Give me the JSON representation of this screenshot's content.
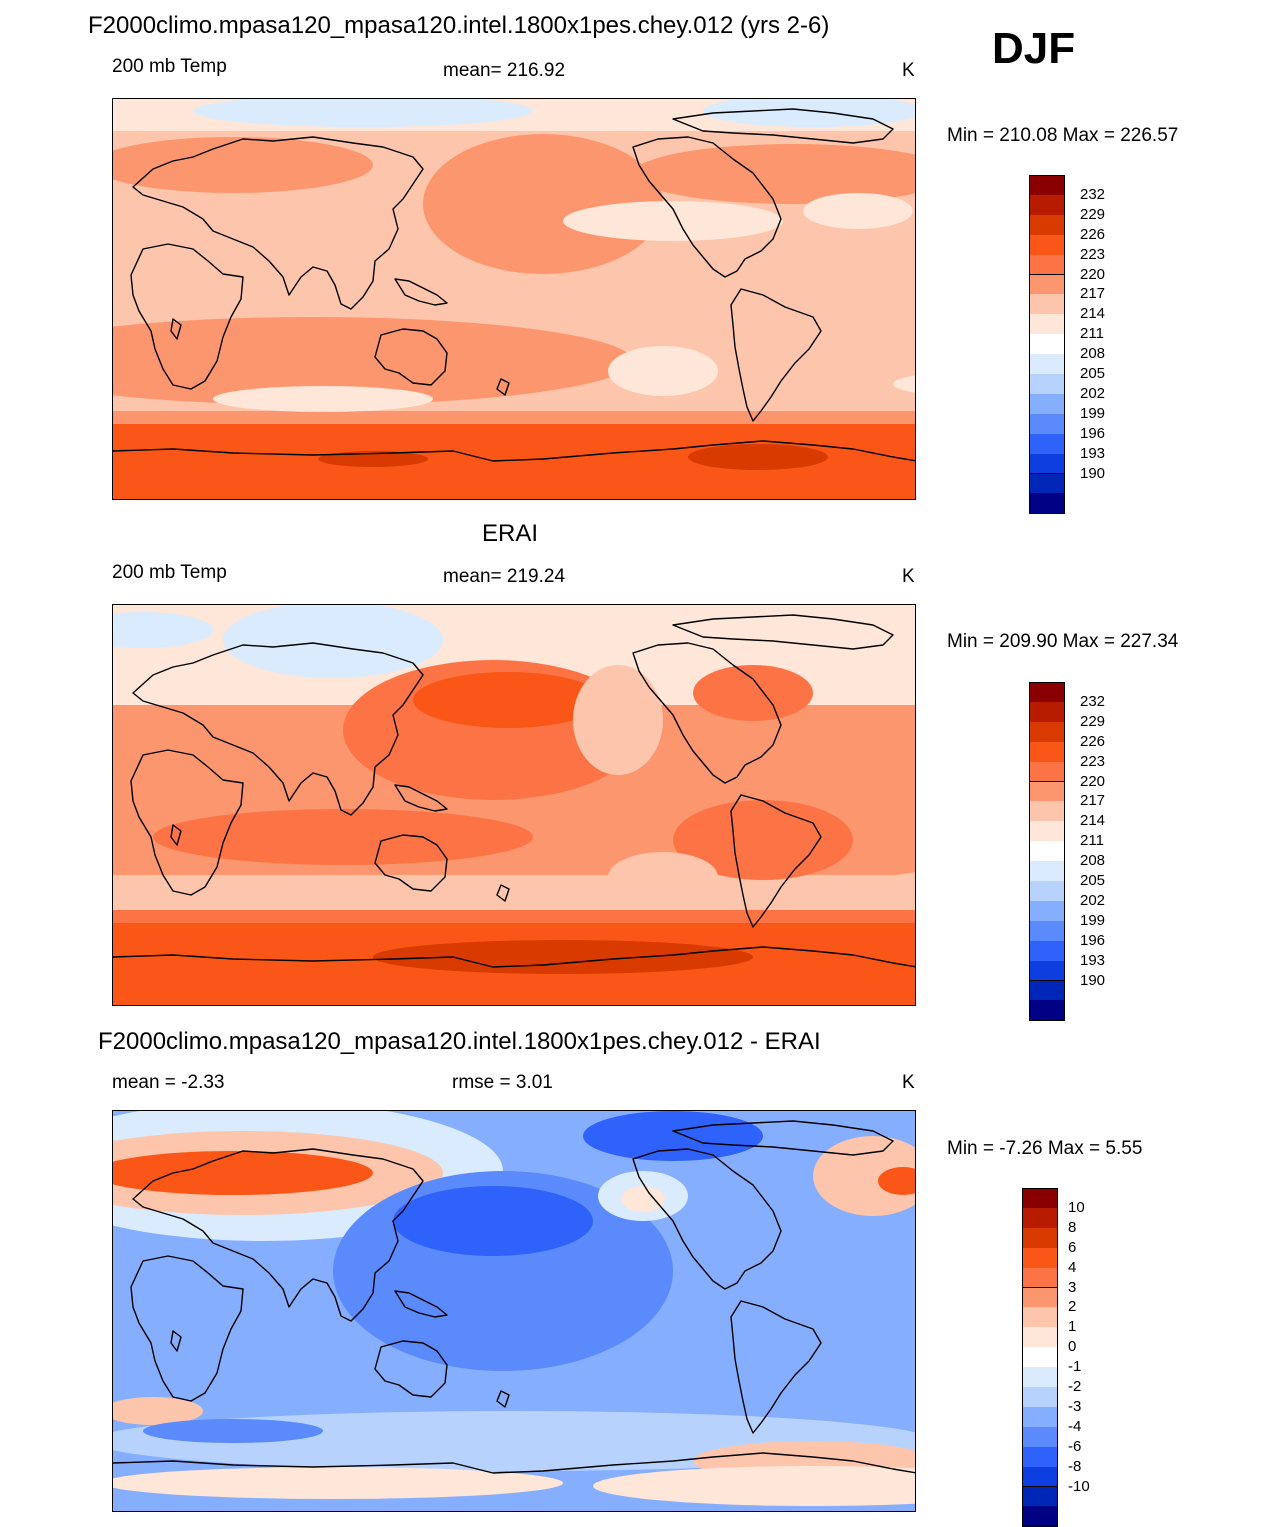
{
  "season": "DJF",
  "panels": [
    {
      "title": "F2000climo.mpasa120_mpasa120.intel.1800x1pes.chey.012 (yrs 2-6)",
      "left": "200 mb Temp",
      "center": "mean= 216.92",
      "units": "K",
      "minmax": "Min = 210.08 Max = 226.57",
      "bg": "#fcc5ac",
      "colorbar": {
        "labels": [
          "232",
          "229",
          "226",
          "223",
          "220",
          "217",
          "214",
          "211",
          "208",
          "205",
          "202",
          "199",
          "196",
          "193",
          "190"
        ],
        "colors": [
          "#8a0000",
          "#b81c00",
          "#d93a00",
          "#fa5617",
          "#fc7446",
          "#fc966e",
          "#fcc5ac",
          "#fee6d8",
          "#ffffff",
          "#d9ebfd",
          "#b7d3fd",
          "#86aefe",
          "#5a8afb",
          "#2f62fb",
          "#0d3ee0",
          "#0026b8",
          "#000085"
        ]
      },
      "regions": [
        {
          "kind": "band",
          "color": "#fee6d8",
          "y1": 0,
          "y2": 32
        },
        {
          "kind": "band",
          "color": "#fc966e",
          "y1": 312,
          "y2": 325
        },
        {
          "kind": "band",
          "color": "#fa5617",
          "y1": 325,
          "y2": 402
        },
        {
          "kind": "blob",
          "color": "#d9ebfd",
          "cx": 250,
          "cy": 12,
          "rx": 170,
          "ry": 16
        },
        {
          "kind": "blob",
          "color": "#d9ebfd",
          "cx": 700,
          "cy": 12,
          "rx": 110,
          "ry": 16
        },
        {
          "kind": "blob",
          "color": "#fc966e",
          "cx": 120,
          "cy": 66,
          "rx": 140,
          "ry": 28
        },
        {
          "kind": "blob",
          "color": "#fc966e",
          "cx": 430,
          "cy": 105,
          "rx": 120,
          "ry": 70
        },
        {
          "kind": "blob",
          "color": "#fc966e",
          "cx": 680,
          "cy": 75,
          "rx": 160,
          "ry": 30
        },
        {
          "kind": "blob",
          "color": "#fee6d8",
          "cx": 560,
          "cy": 122,
          "rx": 110,
          "ry": 20
        },
        {
          "kind": "blob",
          "color": "#fee6d8",
          "cx": 745,
          "cy": 112,
          "rx": 55,
          "ry": 18
        },
        {
          "kind": "blob",
          "color": "#fc966e",
          "cx": 200,
          "cy": 262,
          "rx": 320,
          "ry": 44
        },
        {
          "kind": "blob",
          "color": "#fee6d8",
          "cx": 210,
          "cy": 300,
          "rx": 110,
          "ry": 13
        },
        {
          "kind": "blob",
          "color": "#fee6d8",
          "cx": 550,
          "cy": 272,
          "rx": 55,
          "ry": 25
        },
        {
          "kind": "blob",
          "color": "#fee6d8",
          "cx": 880,
          "cy": 285,
          "rx": 100,
          "ry": 14
        },
        {
          "kind": "blob",
          "color": "#d93a00",
          "cx": 260,
          "cy": 360,
          "rx": 55,
          "ry": 8
        },
        {
          "kind": "blob",
          "color": "#d93a00",
          "cx": 645,
          "cy": 358,
          "rx": 70,
          "ry": 13
        }
      ]
    },
    {
      "title": "ERAI",
      "left": "200 mb Temp",
      "center": "mean= 219.24",
      "units": "K",
      "minmax": "Min = 209.90 Max = 227.34",
      "bg": "#fc966e",
      "colorbar": {
        "labels": [
          "232",
          "229",
          "226",
          "223",
          "220",
          "217",
          "214",
          "211",
          "208",
          "205",
          "202",
          "199",
          "196",
          "193",
          "190"
        ],
        "colors": [
          "#8a0000",
          "#b81c00",
          "#d93a00",
          "#fa5617",
          "#fc7446",
          "#fc966e",
          "#fcc5ac",
          "#fee6d8",
          "#ffffff",
          "#d9ebfd",
          "#b7d3fd",
          "#86aefe",
          "#5a8afb",
          "#2f62fb",
          "#0d3ee0",
          "#0026b8",
          "#000085"
        ]
      },
      "regions": [
        {
          "kind": "band",
          "color": "#fee6d8",
          "y1": 0,
          "y2": 100
        },
        {
          "kind": "band",
          "color": "#fcc5ac",
          "y1": 270,
          "y2": 305
        },
        {
          "kind": "band",
          "color": "#fc7446",
          "y1": 305,
          "y2": 318
        },
        {
          "kind": "band",
          "color": "#fa5617",
          "y1": 318,
          "y2": 402
        },
        {
          "kind": "blob",
          "color": "#d9ebfd",
          "cx": 220,
          "cy": 35,
          "rx": 110,
          "ry": 38
        },
        {
          "kind": "blob",
          "color": "#d9ebfd",
          "cx": 30,
          "cy": 25,
          "rx": 70,
          "ry": 18
        },
        {
          "kind": "blob",
          "color": "#fc7446",
          "cx": 380,
          "cy": 125,
          "rx": 150,
          "ry": 70
        },
        {
          "kind": "blob",
          "color": "#fa5617",
          "cx": 395,
          "cy": 95,
          "rx": 95,
          "ry": 28
        },
        {
          "kind": "blob",
          "color": "#fc7446",
          "cx": 640,
          "cy": 88,
          "rx": 60,
          "ry": 28
        },
        {
          "kind": "blob",
          "color": "#fcc5ac",
          "cx": 505,
          "cy": 115,
          "rx": 45,
          "ry": 55
        },
        {
          "kind": "blob",
          "color": "#fc7446",
          "cx": 230,
          "cy": 232,
          "rx": 190,
          "ry": 28
        },
        {
          "kind": "blob",
          "color": "#fc7446",
          "cx": 650,
          "cy": 235,
          "rx": 90,
          "ry": 40
        },
        {
          "kind": "blob",
          "color": "#fcc5ac",
          "cx": 550,
          "cy": 272,
          "rx": 55,
          "ry": 25
        },
        {
          "kind": "blob",
          "color": "#fcc5ac",
          "cx": 870,
          "cy": 280,
          "rx": 110,
          "ry": 16
        },
        {
          "kind": "blob",
          "color": "#d93a00",
          "cx": 450,
          "cy": 352,
          "rx": 190,
          "ry": 17
        }
      ]
    },
    {
      "title": "F2000climo.mpasa120_mpasa120.intel.1800x1pes.chey.012 - ERAI",
      "left": "mean =  -2.33",
      "center": "rmse =   3.01",
      "units": "K",
      "minmax": "Min =  -7.26 Max =   5.55",
      "bg": "#86aefe",
      "colorbar": {
        "labels": [
          "10",
          "8",
          "6",
          "4",
          "3",
          "2",
          "1",
          "0",
          "-1",
          "-2",
          "-3",
          "-4",
          "-6",
          "-8",
          "-10"
        ],
        "colors": [
          "#8a0000",
          "#b81c00",
          "#d93a00",
          "#fa5617",
          "#fc7446",
          "#fc966e",
          "#fcc5ac",
          "#fee6d8",
          "#ffffff",
          "#d9ebfd",
          "#b7d3fd",
          "#86aefe",
          "#5a8afb",
          "#2f62fb",
          "#0d3ee0",
          "#0026b8",
          "#000085"
        ]
      },
      "regions": [
        {
          "kind": "blob",
          "color": "#d9ebfd",
          "cx": 150,
          "cy": 60,
          "rx": 240,
          "ry": 70
        },
        {
          "kind": "blob",
          "color": "#fcc5ac",
          "cx": 130,
          "cy": 62,
          "rx": 200,
          "ry": 42
        },
        {
          "kind": "blob",
          "color": "#fa5617",
          "cx": 120,
          "cy": 62,
          "rx": 140,
          "ry": 22
        },
        {
          "kind": "blob",
          "color": "#5a8afb",
          "cx": 390,
          "cy": 160,
          "rx": 170,
          "ry": 100
        },
        {
          "kind": "blob",
          "color": "#2f62fb",
          "cx": 380,
          "cy": 110,
          "rx": 100,
          "ry": 35
        },
        {
          "kind": "blob",
          "color": "#2f62fb",
          "cx": 560,
          "cy": 25,
          "rx": 90,
          "ry": 25
        },
        {
          "kind": "blob",
          "color": "#d9ebfd",
          "cx": 530,
          "cy": 85,
          "rx": 45,
          "ry": 25
        },
        {
          "kind": "blob",
          "color": "#fee6d8",
          "cx": 530,
          "cy": 88,
          "rx": 22,
          "ry": 13
        },
        {
          "kind": "blob",
          "color": "#fcc5ac",
          "cx": 760,
          "cy": 65,
          "rx": 60,
          "ry": 40
        },
        {
          "kind": "blob",
          "color": "#fa5617",
          "cx": 790,
          "cy": 70,
          "rx": 25,
          "ry": 14
        },
        {
          "kind": "blob",
          "color": "#fcc5ac",
          "cx": 40,
          "cy": 300,
          "rx": 50,
          "ry": 14
        },
        {
          "kind": "blob",
          "color": "#b7d3fd",
          "cx": 400,
          "cy": 330,
          "rx": 420,
          "ry": 30
        },
        {
          "kind": "blob",
          "color": "#fee6d8",
          "cx": 220,
          "cy": 372,
          "rx": 230,
          "ry": 16
        },
        {
          "kind": "blob",
          "color": "#fcc5ac",
          "cx": 700,
          "cy": 350,
          "rx": 120,
          "ry": 20
        },
        {
          "kind": "blob",
          "color": "#fee6d8",
          "cx": 700,
          "cy": 375,
          "rx": 220,
          "ry": 20
        },
        {
          "kind": "blob",
          "color": "#5a8afb",
          "cx": 120,
          "cy": 320,
          "rx": 90,
          "ry": 12
        }
      ]
    }
  ]
}
